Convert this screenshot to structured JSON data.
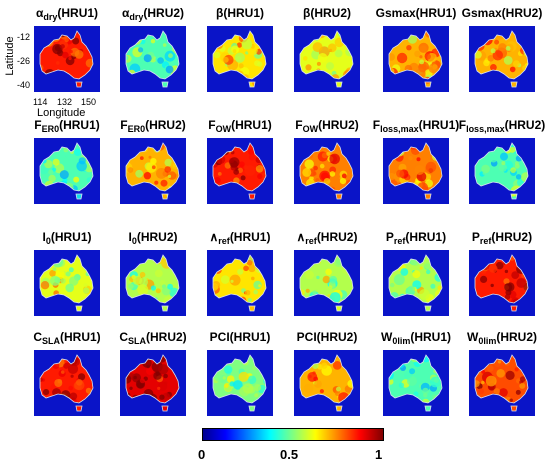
{
  "panels": [
    {
      "id": "alpha-dry-hru1",
      "title_main": "α",
      "title_sub": "dry",
      "title_tail": "(HRU1)",
      "level": 0.85,
      "palette": "hot"
    },
    {
      "id": "alpha-dry-hru2",
      "title_main": "α",
      "title_sub": "dry",
      "title_tail": "(HRU2)",
      "level": 0.45,
      "palette": "cool"
    },
    {
      "id": "beta-hru1",
      "title_main": "β",
      "title_sub": "",
      "title_tail": "(HRU1)",
      "level": 0.65,
      "palette": "warm"
    },
    {
      "id": "beta-hru2",
      "title_main": "β",
      "title_sub": "",
      "title_tail": "(HRU2)",
      "level": 0.6,
      "palette": "warm"
    },
    {
      "id": "gsmax-hru1",
      "title_main": "Gsmax",
      "title_sub": "",
      "title_tail": "(HRU1)",
      "level": 0.7,
      "palette": "warm"
    },
    {
      "id": "gsmax-hru2",
      "title_main": "Gsmax",
      "title_sub": "",
      "title_tail": "(HRU2)",
      "level": 0.7,
      "palette": "warm"
    },
    {
      "id": "fer0-hru1",
      "title_main": "F",
      "title_sub": "ER0",
      "title_tail": "(HRU1)",
      "level": 0.45,
      "palette": "cool"
    },
    {
      "id": "fer0-hru2",
      "title_main": "F",
      "title_sub": "ER0",
      "title_tail": "(HRU2)",
      "level": 0.7,
      "palette": "warm"
    },
    {
      "id": "fow-hru1",
      "title_main": "F",
      "title_sub": "OW",
      "title_tail": "(HRU1)",
      "level": 0.85,
      "palette": "hot"
    },
    {
      "id": "fow-hru2",
      "title_main": "F",
      "title_sub": "OW",
      "title_tail": "(HRU2)",
      "level": 0.75,
      "palette": "warm"
    },
    {
      "id": "flossmax-hru1",
      "title_main": "F",
      "title_sub": "loss,max",
      "title_tail": "(HRU1)",
      "level": 0.75,
      "palette": "warm"
    },
    {
      "id": "flossmax-hru2",
      "title_main": "F",
      "title_sub": "loss,max",
      "title_tail": "(HRU2)",
      "level": 0.45,
      "palette": "cool"
    },
    {
      "id": "i0-hru1",
      "title_main": "I",
      "title_sub": "0",
      "title_tail": "(HRU1)",
      "level": 0.6,
      "palette": "warm"
    },
    {
      "id": "i0-hru2",
      "title_main": "I",
      "title_sub": "0",
      "title_tail": "(HRU2)",
      "level": 0.55,
      "palette": "warm"
    },
    {
      "id": "lambda-ref-hru1",
      "title_main": "∧",
      "title_sub": "ref",
      "title_tail": "(HRU1)",
      "level": 0.65,
      "palette": "warm"
    },
    {
      "id": "lambda-ref-hru2",
      "title_main": "∧",
      "title_sub": "ref",
      "title_tail": "(HRU2)",
      "level": 0.55,
      "palette": "warm"
    },
    {
      "id": "pref-hru1",
      "title_main": "P",
      "title_sub": "ref",
      "title_tail": "(HRU1)",
      "level": 0.55,
      "palette": "warm"
    },
    {
      "id": "pref-hru2",
      "title_main": "P",
      "title_sub": "ref",
      "title_tail": "(HRU2)",
      "level": 0.85,
      "palette": "hot"
    },
    {
      "id": "csla-hru1",
      "title_main": "C",
      "title_sub": "SLA",
      "title_tail": "(HRU1)",
      "level": 0.85,
      "palette": "hot"
    },
    {
      "id": "csla-hru2",
      "title_main": "C",
      "title_sub": "SLA",
      "title_tail": "(HRU2)",
      "level": 0.9,
      "palette": "hot"
    },
    {
      "id": "pci-hru1",
      "title_main": "PCI",
      "title_sub": "",
      "title_tail": "(HRU1)",
      "level": 0.5,
      "palette": "cool"
    },
    {
      "id": "pci-hru2",
      "title_main": "PCI",
      "title_sub": "",
      "title_tail": "(HRU2)",
      "level": 0.7,
      "palette": "warm"
    },
    {
      "id": "w0lim-hru1",
      "title_main": "W",
      "title_sub": "0lim",
      "title_tail": "(HRU1)",
      "level": 0.45,
      "palette": "cool"
    },
    {
      "id": "w0lim-hru2",
      "title_main": "W",
      "title_sub": "0lim",
      "title_tail": "(HRU2)",
      "level": 0.8,
      "palette": "hot"
    }
  ],
  "axes": {
    "ylabel": "Latitude",
    "xlabel": "Longitude",
    "yticks": [
      "-12",
      "-26",
      "-40"
    ],
    "xticks": [
      "114",
      "132",
      "150"
    ]
  },
  "colorbar": {
    "ticks": [
      "0",
      "0.5",
      "1"
    ],
    "range": [
      0,
      1
    ],
    "colormap": "jet"
  },
  "colors": {
    "background": "#0000c8",
    "ocean": "#0000cc"
  }
}
